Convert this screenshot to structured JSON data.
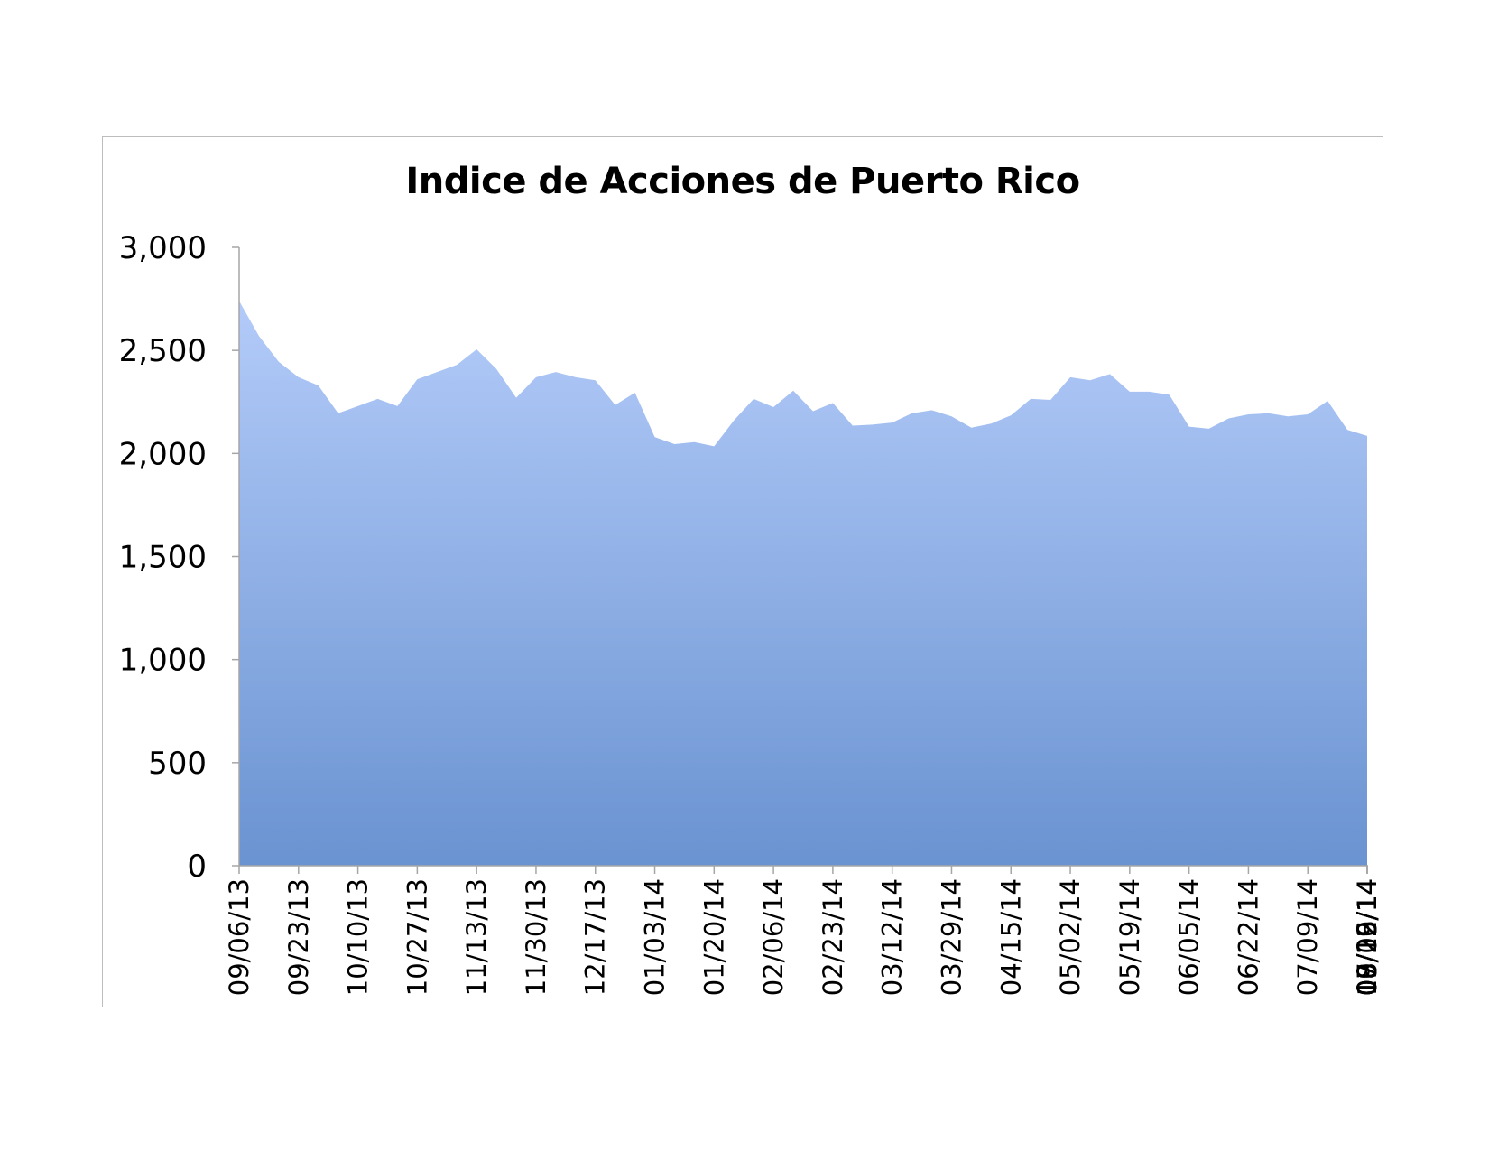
{
  "colors": {
    "area_top": "#b3cbf9",
    "area_bottom": "#6a93d1",
    "axis": "#a6a6a6"
  },
  "chart_data": {
    "type": "area",
    "title": "Indice de Acciones de Puerto Rico",
    "xlabel": "",
    "ylabel": "",
    "ylim": [
      0,
      3000
    ],
    "y_ticks": [
      "0",
      "500",
      "1,000",
      "1,500",
      "2,000",
      "2,500",
      "3,000"
    ],
    "x_tick_labels": [
      "09/06/13",
      "09/23/13",
      "10/10/13",
      "10/27/13",
      "11/13/13",
      "11/30/13",
      "12/17/13",
      "01/03/14",
      "01/20/14",
      "02/06/14",
      "02/23/14",
      "03/12/14",
      "03/29/14",
      "04/15/14",
      "05/02/14",
      "05/19/14",
      "06/05/14",
      "06/22/14",
      "07/09/14",
      "07/26/14",
      "08/12/14",
      "08/29/14",
      "09/15/14",
      "10/02/14"
    ],
    "grid": false,
    "legend": "none",
    "series": [
      {
        "values": [
          2740,
          2570,
          2445,
          2370,
          2330,
          2195,
          2230,
          2265,
          2230,
          2360,
          2395,
          2430,
          2505,
          2410,
          2270,
          2370,
          2395,
          2370,
          2355,
          2235,
          2295,
          2080,
          2045,
          2055,
          2035,
          2160,
          2265,
          2225,
          2305,
          2205,
          2245,
          2135,
          2140,
          2150,
          2195,
          2210,
          2180,
          2125,
          2145,
          2185,
          2265,
          2260,
          2370,
          2355,
          2385,
          2300,
          2300,
          2285,
          2130,
          2120,
          2170,
          2190,
          2195,
          2180,
          2190,
          2255,
          2115,
          2085
        ]
      }
    ]
  }
}
